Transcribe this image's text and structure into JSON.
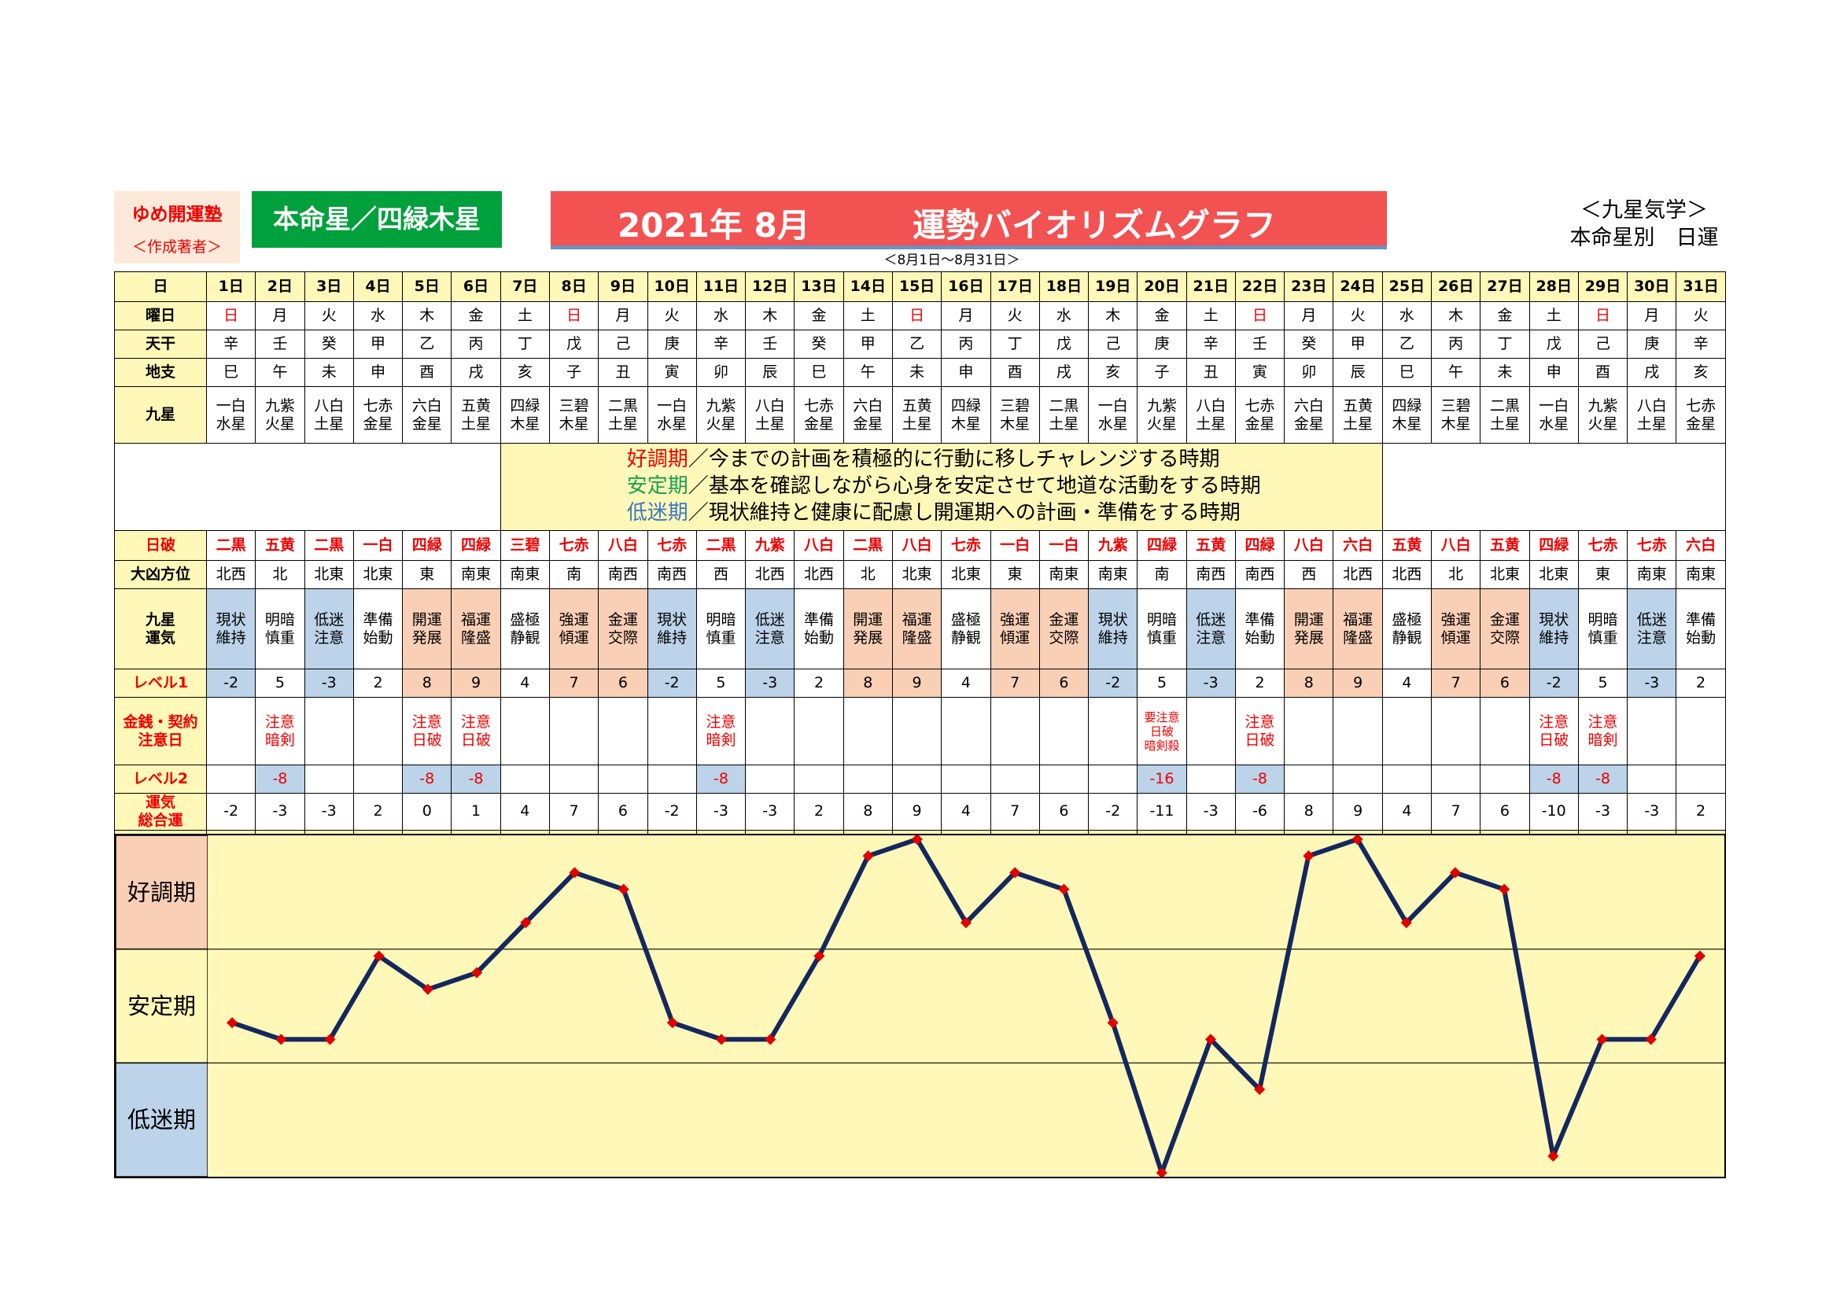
{
  "brand": {
    "line1": "ゆめ開運塾",
    "line2": "＜作成著者＞"
  },
  "star_label": "本命星／四緑木星",
  "title": {
    "month": "2021年 8月",
    "name": "運勢バイオリズムグラフ"
  },
  "range": "＜8月1日～8月31日＞",
  "category": {
    "line1": "＜九星気学＞",
    "line2": "本命星別　日運"
  },
  "row_labels": {
    "day": "日",
    "weekday": "曜日",
    "tenkan": "天干",
    "chishi": "地支",
    "kyusei": "九星",
    "hiha": "日破",
    "daikyo": "大凶方位",
    "unki": "九星\n運気",
    "level1": "レベル1",
    "kinsen": "金銭・契約\n注意日",
    "level2": "レベル2",
    "total": "運気\n総合運"
  },
  "days": [
    "1日",
    "2日",
    "3日",
    "4日",
    "5日",
    "6日",
    "7日",
    "8日",
    "9日",
    "10日",
    "11日",
    "12日",
    "13日",
    "14日",
    "15日",
    "16日",
    "17日",
    "18日",
    "19日",
    "20日",
    "21日",
    "22日",
    "23日",
    "24日",
    "25日",
    "26日",
    "27日",
    "28日",
    "29日",
    "30日",
    "31日"
  ],
  "weekdays": [
    "日",
    "月",
    "火",
    "水",
    "木",
    "金",
    "土",
    "日",
    "月",
    "火",
    "水",
    "木",
    "金",
    "土",
    "日",
    "月",
    "火",
    "水",
    "木",
    "金",
    "土",
    "日",
    "月",
    "火",
    "水",
    "木",
    "金",
    "土",
    "日",
    "月",
    "火"
  ],
  "tenkan": [
    "辛",
    "壬",
    "癸",
    "甲",
    "乙",
    "丙",
    "丁",
    "戊",
    "己",
    "庚",
    "辛",
    "壬",
    "癸",
    "甲",
    "乙",
    "丙",
    "丁",
    "戊",
    "己",
    "庚",
    "辛",
    "壬",
    "癸",
    "甲",
    "乙",
    "丙",
    "丁",
    "戊",
    "己",
    "庚",
    "辛"
  ],
  "chishi": [
    "巳",
    "午",
    "未",
    "申",
    "酉",
    "戌",
    "亥",
    "子",
    "丑",
    "寅",
    "卯",
    "辰",
    "巳",
    "午",
    "未",
    "申",
    "酉",
    "戌",
    "亥",
    "子",
    "丑",
    "寅",
    "卯",
    "辰",
    "巳",
    "午",
    "未",
    "申",
    "酉",
    "戌",
    "亥"
  ],
  "kyusei": [
    "一白\n水星",
    "九紫\n火星",
    "八白\n土星",
    "七赤\n金星",
    "六白\n金星",
    "五黄\n土星",
    "四緑\n木星",
    "三碧\n木星",
    "二黒\n土星",
    "一白\n水星",
    "九紫\n火星",
    "八白\n土星",
    "七赤\n金星",
    "六白\n金星",
    "五黄\n土星",
    "四緑\n木星",
    "三碧\n木星",
    "二黒\n土星",
    "一白\n水星",
    "九紫\n火星",
    "八白\n土星",
    "七赤\n金星",
    "六白\n金星",
    "五黄\n土星",
    "四緑\n木星",
    "三碧\n木星",
    "二黒\n土星",
    "一白\n水星",
    "九紫\n火星",
    "八白\n土星",
    "七赤\n金星"
  ],
  "legend": {
    "good_term": "好調期",
    "good_text": "／今までの計画を積極的に行動に移しチャレンジする時期",
    "stable_term": "安定期",
    "stable_text": "／基本を確認しながら心身を安定させて地道な活動をする時期",
    "low_term": "低迷期",
    "low_text": "／現状維持と健康に配慮し開運期への計画・準備をする時期"
  },
  "hiha": [
    "二黒",
    "五黄",
    "二黒",
    "一白",
    "四緑",
    "四緑",
    "三碧",
    "七赤",
    "八白",
    "七赤",
    "二黒",
    "九紫",
    "八白",
    "二黒",
    "八白",
    "七赤",
    "一白",
    "一白",
    "九紫",
    "四緑",
    "五黄",
    "四緑",
    "八白",
    "六白",
    "五黄",
    "八白",
    "五黄",
    "四緑",
    "七赤",
    "七赤",
    "六白"
  ],
  "daikyo": [
    "北西",
    "北",
    "北東",
    "北東",
    "東",
    "南東",
    "南東",
    "南",
    "南西",
    "南西",
    "西",
    "北西",
    "北西",
    "北",
    "北東",
    "北東",
    "東",
    "南東",
    "南東",
    "南",
    "南西",
    "南西",
    "西",
    "北西",
    "北西",
    "北",
    "北東",
    "北東",
    "東",
    "南東",
    "南東"
  ],
  "unki": [
    "現状\n維持",
    "明暗\n慎重",
    "低迷\n注意",
    "準備\n始動",
    "開運\n発展",
    "福運\n隆盛",
    "盛極\n静観",
    "強運\n傾運",
    "金運\n交際",
    "現状\n維持",
    "明暗\n慎重",
    "低迷\n注意",
    "準備\n始動",
    "開運\n発展",
    "福運\n隆盛",
    "盛極\n静観",
    "強運\n傾運",
    "金運\n交際",
    "現状\n維持",
    "明暗\n慎重",
    "低迷\n注意",
    "準備\n始動",
    "開運\n発展",
    "福運\n隆盛",
    "盛極\n静観",
    "強運\n傾運",
    "金運\n交際",
    "現状\n維持",
    "明暗\n慎重",
    "低迷\n注意",
    "準備\n始動"
  ],
  "level1": [
    "-2",
    "5",
    "-3",
    "2",
    "8",
    "9",
    "4",
    "7",
    "6",
    "-2",
    "5",
    "-3",
    "2",
    "8",
    "9",
    "4",
    "7",
    "6",
    "-2",
    "5",
    "-3",
    "2",
    "8",
    "9",
    "4",
    "7",
    "6",
    "-2",
    "5",
    "-3",
    "2"
  ],
  "kinsen": [
    "",
    "注意\n暗剣",
    "",
    "",
    "注意\n日破",
    "注意\n日破",
    "",
    "",
    "",
    "",
    "注意\n暗剣",
    "",
    "",
    "",
    "",
    "",
    "",
    "",
    "",
    "要注意\n日破\n暗剣殺",
    "",
    "注意\n日破",
    "",
    "",
    "",
    "",
    "",
    "注意\n日破",
    "注意\n暗剣",
    "",
    ""
  ],
  "level2": [
    "",
    "-8",
    "",
    "",
    "-8",
    "-8",
    "",
    "",
    "",
    "",
    "-8",
    "",
    "",
    "",
    "",
    "",
    "",
    "",
    "",
    "-16",
    "",
    "-8",
    "",
    "",
    "",
    "",
    "",
    "-8",
    "-8",
    "",
    ""
  ],
  "total": [
    "-2",
    "-3",
    "-3",
    "2",
    "0",
    "1",
    "4",
    "7",
    "6",
    "-2",
    "-3",
    "-3",
    "2",
    "8",
    "9",
    "4",
    "7",
    "6",
    "-2",
    "-11",
    "-3",
    "-6",
    "8",
    "9",
    "4",
    "7",
    "6",
    "-10",
    "-3",
    "-3",
    "2"
  ],
  "colors": {
    "good": "#f9cfb6",
    "stable": "#fff8b8",
    "low": "#bcd3e9",
    "line": "#14275e",
    "marker": "#e00000"
  },
  "chart_data": {
    "type": "line",
    "categories": [
      "1日",
      "2日",
      "3日",
      "4日",
      "5日",
      "6日",
      "7日",
      "8日",
      "9日",
      "10日",
      "11日",
      "12日",
      "13日",
      "14日",
      "15日",
      "16日",
      "17日",
      "18日",
      "19日",
      "20日",
      "21日",
      "22日",
      "23日",
      "24日",
      "25日",
      "26日",
      "27日",
      "28日",
      "29日",
      "30日",
      "31日"
    ],
    "series": [
      {
        "values": [
          -2,
          -3,
          -3,
          2,
          0,
          1,
          4,
          7,
          6,
          -2,
          -3,
          -3,
          2,
          8,
          9,
          4,
          7,
          6,
          -2,
          -11,
          -3,
          -6,
          8,
          9,
          4,
          7,
          6,
          -10,
          -3,
          -3,
          2
        ]
      }
    ],
    "zones": [
      "好調期",
      "安定期",
      "低迷期"
    ],
    "ylim": [
      -11,
      9
    ],
    "grid": true
  }
}
